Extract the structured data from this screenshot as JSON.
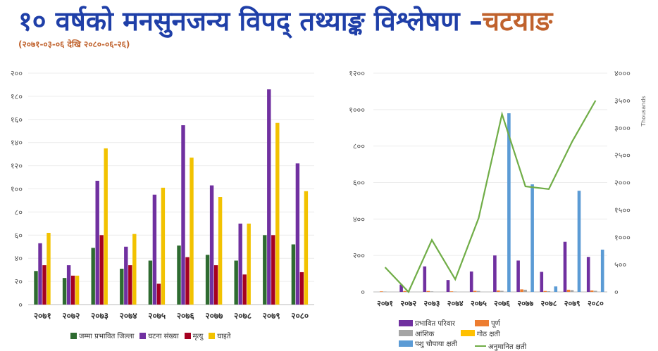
{
  "header": {
    "title_main": "१० वर्षको मनसुनजन्य विपद् तथ्याङ्क विश्लेषण –",
    "title_place": "चटयाङ",
    "subtitle": "(२०७१-०३-०६ देखि २०८०-०६-२६)"
  },
  "chart_data": [
    {
      "type": "bar",
      "title": "",
      "xlabel": "",
      "ylabel": "",
      "ylim": [
        0,
        200
      ],
      "yticks": [
        "०",
        "२०",
        "४०",
        "६०",
        "८०",
        "१००",
        "१२०",
        "१४०",
        "१६०",
        "१८०",
        "२००"
      ],
      "categories": [
        "२०७१",
        "२०७२",
        "२०७३",
        "२०७४",
        "२०७५",
        "२०७६",
        "२०७७",
        "२०७८",
        "२०७९",
        "२०८०"
      ],
      "legend_position": "bottom",
      "series": [
        {
          "name": "जम्मा प्रभावित जिल्ला",
          "color": "#2e6b30",
          "values": [
            29,
            23,
            49,
            31,
            38,
            51,
            43,
            38,
            60,
            52
          ]
        },
        {
          "name": "घटना संख्या",
          "color": "#7030a0",
          "values": [
            53,
            34,
            107,
            50,
            95,
            155,
            103,
            70,
            186,
            122
          ]
        },
        {
          "name": "मृत्यु",
          "color": "#a50021",
          "values": [
            34,
            25,
            60,
            34,
            18,
            41,
            34,
            26,
            60,
            28
          ]
        },
        {
          "name": "घाइते",
          "color": "#f2c200",
          "values": [
            62,
            25,
            135,
            61,
            101,
            127,
            93,
            70,
            157,
            98
          ]
        }
      ]
    },
    {
      "type": "bar",
      "title": "",
      "xlabel": "",
      "ylabel": "",
      "y2label": "Thousands",
      "ylim": [
        0,
        1200
      ],
      "yticks": [
        "०",
        "२००",
        "४००",
        "६००",
        "८००",
        "१०००",
        "१२००"
      ],
      "y2lim": [
        0,
        4000
      ],
      "y2ticks": [
        "०",
        "५००",
        "१०००",
        "१५००",
        "२०००",
        "२५००",
        "३०००",
        "३५००",
        "४०००"
      ],
      "categories": [
        "२०७१",
        "२०७२",
        "२०७३",
        "२०७४",
        "२०७५",
        "२०७६",
        "२०७७",
        "२०७८",
        "२०७९",
        "२०८०"
      ],
      "legend_position": "bottom",
      "series": [
        {
          "name": "प्रभावित परिवार",
          "color": "#7030a0",
          "kind": "bar",
          "values": [
            0,
            40,
            140,
            65,
            112,
            200,
            172,
            110,
            275,
            192
          ]
        },
        {
          "name": "पूर्ण",
          "color": "#ed7d31",
          "kind": "bar",
          "values": [
            3,
            5,
            5,
            3,
            6,
            8,
            14,
            5,
            12,
            8
          ]
        },
        {
          "name": "आंशिक",
          "color": "#a5a5a5",
          "kind": "bar",
          "values": [
            2,
            3,
            3,
            2,
            5,
            6,
            12,
            4,
            10,
            6
          ]
        },
        {
          "name": "गोठ क्षती",
          "color": "#ffc000",
          "kind": "bar",
          "values": [
            0,
            0,
            0,
            0,
            0,
            0,
            0,
            0,
            0,
            0
          ]
        },
        {
          "name": "पशु चौपाया क्षती",
          "color": "#5b9bd5",
          "kind": "bar",
          "values": [
            0,
            0,
            0,
            0,
            0,
            980,
            590,
            30,
            555,
            232
          ]
        },
        {
          "name": "अनुमानित क्षती",
          "color": "#70ad47",
          "kind": "line",
          "axis": "right",
          "values": [
            450,
            0,
            950,
            230,
            1350,
            3250,
            1930,
            1880,
            2750,
            3500
          ]
        }
      ]
    }
  ]
}
